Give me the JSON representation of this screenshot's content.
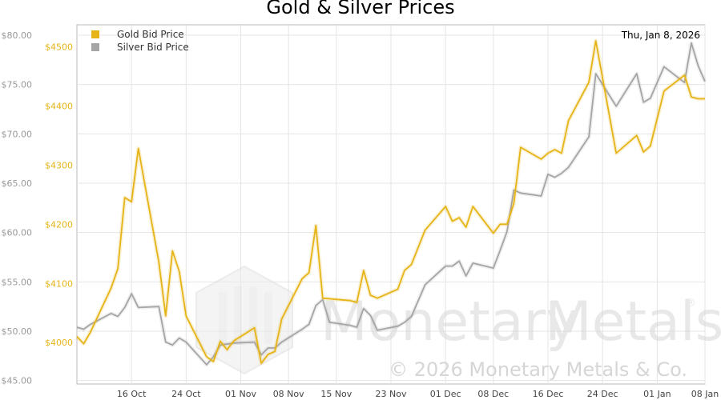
{
  "chart_data": {
    "type": "line",
    "title": "Gold & Silver Prices",
    "date_label": "Thu, Jan 8, 2026",
    "y_left": {
      "ticks": [
        "$45.00",
        "$50.00",
        "$55.00",
        "$60.00",
        "$65.00",
        "$70.00",
        "$75.00",
        "$80.00"
      ],
      "range": [
        44.65,
        81.05
      ]
    },
    "y_right": {
      "ticks": [
        "$4000",
        "$4100",
        "$4200",
        "$4300",
        "$4400",
        "$4500"
      ],
      "range": [
        3930,
        4537
      ]
    },
    "x_labels": [
      "16 Oct",
      "24 Oct",
      "01 Nov",
      "08 Nov",
      "15 Nov",
      "23 Nov",
      "01 Dec",
      "08 Dec",
      "16 Dec",
      "24 Dec",
      "01 Jan",
      "08 Jan"
    ],
    "x": [
      "Oct 8",
      "Oct 9",
      "Oct 10",
      "Oct 13",
      "Oct 14",
      "Oct 15",
      "Oct 16",
      "Oct 17",
      "Oct 20",
      "Oct 21",
      "Oct 22",
      "Oct 23",
      "Oct 24",
      "Oct 27",
      "Oct 28",
      "Oct 29",
      "Oct 30",
      "Oct 31",
      "Nov 3",
      "Nov 4",
      "Nov 5",
      "Nov 6",
      "Nov 7",
      "Nov 10",
      "Nov 11",
      "Nov 12",
      "Nov 13",
      "Nov 14",
      "Nov 17",
      "Nov 18",
      "Nov 19",
      "Nov 20",
      "Nov 21",
      "Nov 24",
      "Nov 25",
      "Nov 26",
      "Nov 28",
      "Dec 1",
      "Dec 2",
      "Dec 3",
      "Dec 4",
      "Dec 5",
      "Dec 8",
      "Dec 9",
      "Dec 10",
      "Dec 11",
      "Dec 12",
      "Dec 15",
      "Dec 16",
      "Dec 17",
      "Dec 18",
      "Dec 19",
      "Dec 22",
      "Dec 23",
      "Dec 26",
      "Dec 29",
      "Dec 30",
      "Dec 31",
      "Jan 2",
      "Jan 5",
      "Jan 6",
      "Jan 7",
      "Jan 8"
    ],
    "series": [
      {
        "name": "Gold Bid Price",
        "color": "#E6B417",
        "axis": "right",
        "values": [
          4010,
          3998,
          4018,
          4092,
          4125,
          4245,
          4238,
          4328,
          4136,
          4045,
          4155,
          4120,
          4045,
          3976,
          3968,
          4002,
          3988,
          4003,
          4025,
          3965,
          3980,
          3985,
          4040,
          4108,
          4118,
          4198,
          4075,
          4074,
          4071,
          4068,
          4122,
          4080,
          4075,
          4090,
          4122,
          4132,
          4190,
          4230,
          4205,
          4211,
          4195,
          4230,
          4185,
          4200,
          4200,
          4235,
          4330,
          4310,
          4320,
          4326,
          4320,
          4375,
          4440,
          4510,
          4320,
          4350,
          4322,
          4332,
          4425,
          4452,
          4415,
          4412,
          4412
        ]
      },
      {
        "name": "Silver Bid Price",
        "color": "#A5A5A5",
        "axis": "left",
        "values": [
          50.4,
          50.2,
          50.7,
          51.8,
          51.5,
          52.4,
          53.8,
          52.4,
          52.5,
          48.9,
          48.6,
          49.3,
          48.9,
          46.6,
          47.4,
          48.6,
          48.7,
          48.8,
          48.9,
          47.6,
          48.3,
          48.3,
          48.9,
          50.2,
          50.7,
          52.6,
          53.2,
          50.9,
          50.6,
          50.4,
          52.3,
          51.6,
          50.1,
          50.5,
          50.9,
          51.5,
          54.7,
          56.6,
          56.6,
          57.1,
          55.6,
          56.9,
          56.4,
          58.2,
          60.1,
          64.3,
          64.0,
          63.7,
          65.9,
          65.6,
          66.0,
          66.6,
          69.7,
          76.1,
          72.8,
          76.1,
          73.2,
          73.6,
          76.8,
          75.2,
          79.2,
          76.9,
          75.3
        ]
      }
    ],
    "legend": "top-left",
    "grid": true
  },
  "watermark": {
    "brand_left": "Monetary",
    "brand_right": "Metals",
    "registered": "®",
    "copyright": "© 2026 Monetary Metals & Co."
  }
}
